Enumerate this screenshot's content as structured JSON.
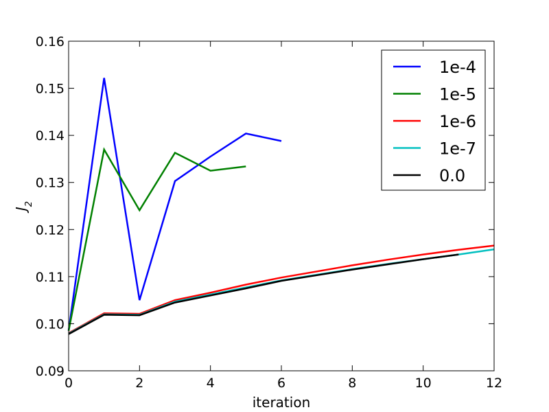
{
  "chart_data": {
    "type": "line",
    "xlabel": "iteration",
    "ylabel": "J",
    "ylabel_subscript": "2",
    "xlim": [
      0,
      12
    ],
    "ylim": [
      0.09,
      0.16
    ],
    "x_ticks": [
      "0",
      "2",
      "4",
      "6",
      "8",
      "10",
      "12"
    ],
    "y_ticks": [
      "0.09",
      "0.10",
      "0.11",
      "0.12",
      "0.13",
      "0.14",
      "0.15",
      "0.16"
    ],
    "grid": false,
    "legend_position": "top-right",
    "series": [
      {
        "name": "1e-4",
        "color": "#0000ff",
        "x": [
          0,
          1,
          2,
          3,
          4,
          5,
          6
        ],
        "y": [
          0.0985,
          0.1522,
          0.105,
          0.1303,
          0.1355,
          0.1404,
          0.1388
        ]
      },
      {
        "name": "1e-5",
        "color": "#008000",
        "x": [
          0,
          1,
          2,
          3,
          4,
          5
        ],
        "y": [
          0.0985,
          0.137,
          0.1241,
          0.1363,
          0.1325,
          0.1334
        ]
      },
      {
        "name": "1e-6",
        "color": "#ff0000",
        "x": [
          0,
          1,
          2,
          3,
          4,
          5,
          6,
          7,
          8,
          9,
          10,
          11,
          12
        ],
        "y": [
          0.098,
          0.1022,
          0.1021,
          0.105,
          0.1066,
          0.1083,
          0.1098,
          0.1111,
          0.1124,
          0.1136,
          0.1147,
          0.1157,
          0.1166
        ]
      },
      {
        "name": "1e-7",
        "color": "#00bfbf",
        "x": [
          0,
          1,
          2,
          3,
          4,
          5,
          6,
          7,
          8,
          9,
          10,
          11,
          12
        ],
        "y": [
          0.0979,
          0.102,
          0.1019,
          0.1047,
          0.1062,
          0.1077,
          0.1092,
          0.1104,
          0.1116,
          0.1127,
          0.1137,
          0.1147,
          0.1158
        ]
      },
      {
        "name": "0.0",
        "color": "#000000",
        "x": [
          0,
          1,
          2,
          3,
          4,
          5,
          6,
          7,
          8,
          9,
          10,
          11
        ],
        "y": [
          0.0978,
          0.1019,
          0.1018,
          0.1045,
          0.106,
          0.1075,
          0.1091,
          0.1103,
          0.1115,
          0.1126,
          0.1137,
          0.1147
        ]
      }
    ]
  }
}
